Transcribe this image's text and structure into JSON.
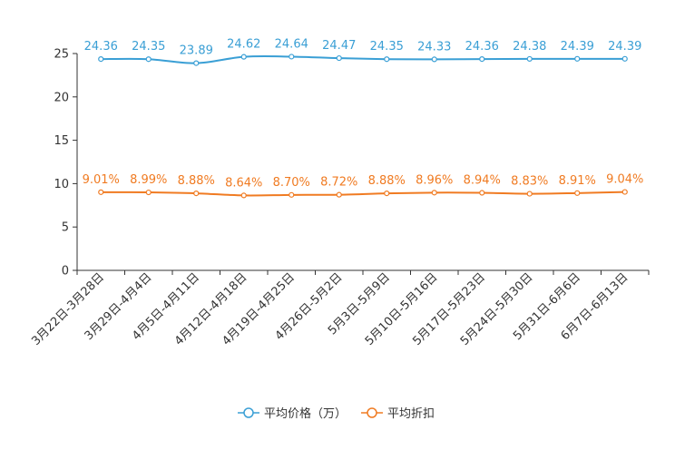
{
  "chart_data": {
    "type": "line",
    "title": "",
    "xlabel": "",
    "ylabel": "",
    "ylim": [
      0,
      25
    ],
    "yticks": [
      0,
      5,
      10,
      15,
      20,
      25
    ],
    "grid": false,
    "legend_position": "bottom-center",
    "categories": [
      "3月22日-3月28日",
      "3月29日-4月4日",
      "4月5日-4月11日",
      "4月12日-4月18日",
      "4月19日-4月25日",
      "4月26日-5月2日",
      "5月3日-5月9日",
      "5月10日-5月16日",
      "5月17日-5月23日",
      "5月24日-5月30日",
      "5月31日-6月6日",
      "6月7日-6月13日"
    ],
    "series": [
      {
        "name": "平均价格（万）",
        "color": "#3a9fd5",
        "values": [
          24.36,
          24.35,
          23.89,
          24.62,
          24.64,
          24.47,
          24.35,
          24.33,
          24.36,
          24.38,
          24.39,
          24.39
        ],
        "labels": [
          "24.36",
          "24.35",
          "23.89",
          "24.62",
          "24.64",
          "24.47",
          "24.35",
          "24.33",
          "24.36",
          "24.38",
          "24.39",
          "24.39"
        ]
      },
      {
        "name": "平均折扣",
        "color": "#f07b22",
        "values": [
          9.01,
          8.99,
          8.88,
          8.64,
          8.7,
          8.72,
          8.88,
          8.96,
          8.94,
          8.83,
          8.91,
          9.04
        ],
        "labels": [
          "9.01%",
          "8.99%",
          "8.88%",
          "8.64%",
          "8.70%",
          "8.72%",
          "8.88%",
          "8.96%",
          "8.94%",
          "8.83%",
          "8.91%",
          "9.04%"
        ]
      }
    ]
  }
}
